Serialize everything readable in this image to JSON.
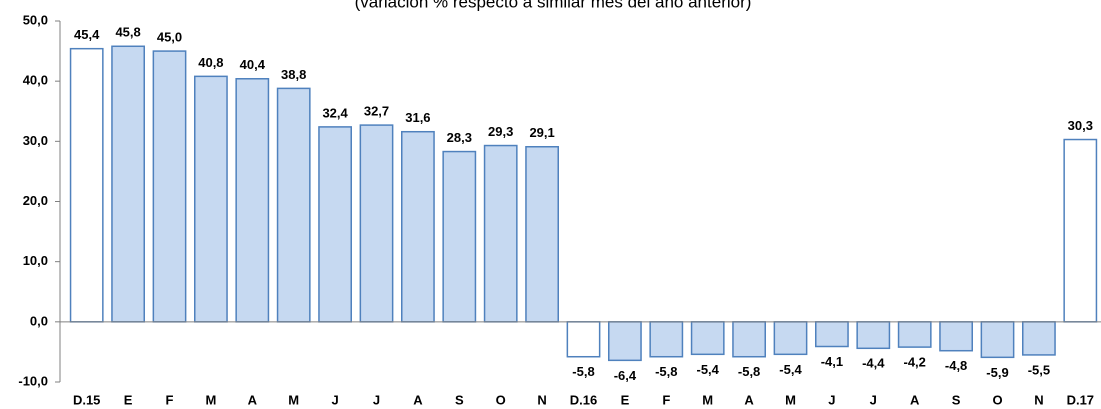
{
  "chart_data": {
    "type": "bar",
    "subtitle": "(variación % respecto a similar mes del año anterior)",
    "categories": [
      "D.15",
      "E",
      "F",
      "M",
      "A",
      "M",
      "J",
      "J",
      "A",
      "S",
      "O",
      "N",
      "D.16",
      "E",
      "F",
      "M",
      "A",
      "M",
      "J",
      "J",
      "A",
      "S",
      "O",
      "N",
      "D.17"
    ],
    "values": [
      45.4,
      45.8,
      45.0,
      40.8,
      40.4,
      38.8,
      32.4,
      32.7,
      31.6,
      28.3,
      29.3,
      29.1,
      -5.8,
      -6.4,
      -5.8,
      -5.4,
      -5.8,
      -5.4,
      -4.1,
      -4.4,
      -4.2,
      -4.8,
      -5.9,
      -5.5,
      30.3
    ],
    "value_labels": [
      "45,4",
      "45,8",
      "45,0",
      "40,8",
      "40,4",
      "38,8",
      "32,4",
      "32,7",
      "31,6",
      "28,3",
      "29,3",
      "29,1",
      "-5,8",
      "-6,4",
      "-5,8",
      "-5,4",
      "-5,8",
      "-5,4",
      "-4,1",
      "-4,4",
      "-4,2",
      "-4,8",
      "-5,9",
      "-5,5",
      "30,3"
    ],
    "colors": [
      "#ffffff",
      "#c6d9f1",
      "#c6d9f1",
      "#c6d9f1",
      "#c6d9f1",
      "#c6d9f1",
      "#c6d9f1",
      "#c6d9f1",
      "#c6d9f1",
      "#c6d9f1",
      "#c6d9f1",
      "#c6d9f1",
      "#ffffff",
      "#c6d9f1",
      "#c6d9f1",
      "#c6d9f1",
      "#c6d9f1",
      "#c6d9f1",
      "#c6d9f1",
      "#c6d9f1",
      "#c6d9f1",
      "#c6d9f1",
      "#c6d9f1",
      "#c6d9f1",
      "#ffffff"
    ],
    "edge_color": "#4f81bd",
    "ylim": [
      -10,
      50
    ],
    "yticks": [
      {
        "value": -10,
        "label": "-10,0"
      },
      {
        "value": 0,
        "label": "0,0"
      },
      {
        "value": 10,
        "label": "10,0"
      },
      {
        "value": 20,
        "label": "20,0"
      },
      {
        "value": 30,
        "label": "30,0"
      },
      {
        "value": 40,
        "label": "40,0"
      },
      {
        "value": 50,
        "label": "50,0"
      }
    ],
    "grid": false
  }
}
